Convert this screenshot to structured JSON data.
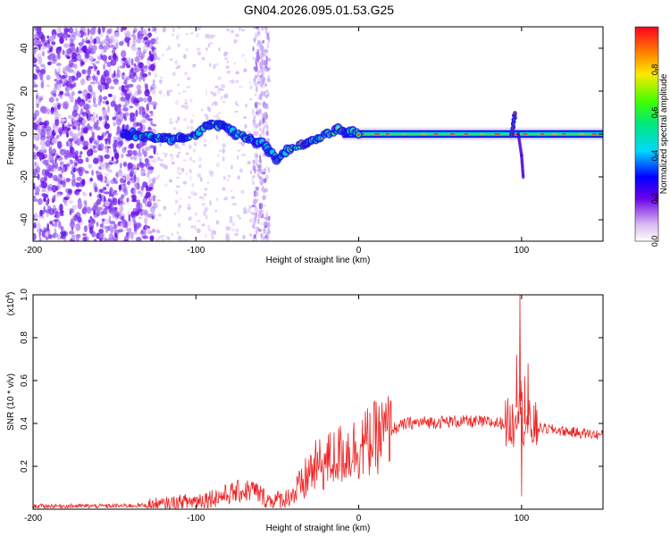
{
  "title": "GN04.2026.095.01.53.G25",
  "chart_data": [
    {
      "type": "heatmap",
      "xlabel": "Height of straight line (km)",
      "ylabel": "Frequency (Hz)",
      "xlim": [
        -200,
        150
      ],
      "ylim": [
        -50,
        50
      ],
      "xticks": [
        -200,
        -100,
        0,
        100
      ],
      "yticks": [
        -40,
        -20,
        0,
        20,
        40
      ],
      "colorbar": {
        "label": "Normalized spectral amplitude",
        "range": [
          0,
          1
        ],
        "ticks": [
          "0.0",
          "0.2",
          "0.4",
          "0.6",
          "0.8"
        ]
      },
      "ridge": {
        "description_points_km_hz": [
          [
            -140,
            0
          ],
          [
            -125,
            -2
          ],
          [
            -110,
            -2
          ],
          [
            -100,
            0
          ],
          [
            -95,
            4
          ],
          [
            -88,
            5
          ],
          [
            -80,
            2
          ],
          [
            -72,
            -1
          ],
          [
            -65,
            -3
          ],
          [
            -58,
            -5
          ],
          [
            -50,
            -12
          ],
          [
            -45,
            -8
          ],
          [
            -40,
            -6
          ],
          [
            -30,
            -4
          ],
          [
            -20,
            0
          ],
          [
            -12,
            2
          ],
          [
            -6,
            1
          ],
          [
            0,
            0
          ],
          [
            20,
            0
          ],
          [
            60,
            0
          ],
          [
            85,
            0
          ],
          [
            92,
            2
          ],
          [
            95,
            8
          ],
          [
            98,
            2
          ],
          [
            100,
            0
          ],
          [
            150,
            0
          ]
        ],
        "branch_km_hz": [
          [
            98,
            0
          ],
          [
            100,
            -10
          ],
          [
            101,
            -20
          ]
        ],
        "noise_region_km": [
          -200,
          -125
        ],
        "diffuse_band_km": [
          -65,
          -55
        ]
      }
    },
    {
      "type": "line",
      "xlabel": "Height of straight line (km)",
      "ylabel": "SNR (10 * v/v)",
      "y_scale_label": "(x10",
      "y_scale_exp": "4",
      "xlim": [
        -200,
        150
      ],
      "ylim": [
        0,
        1.0
      ],
      "xticks": [
        -200,
        -100,
        0,
        100
      ],
      "yticks": [
        "0.2",
        "0.4",
        "0.6",
        "0.8",
        "1.0"
      ],
      "series": [
        {
          "name": "SNR",
          "color": "#ee2222",
          "points_km_val": [
            [
              -200,
              0.015
            ],
            [
              -150,
              0.015
            ],
            [
              -120,
              0.02
            ],
            [
              -100,
              0.04
            ],
            [
              -85,
              0.06
            ],
            [
              -75,
              0.08
            ],
            [
              -65,
              0.09
            ],
            [
              -55,
              0.04
            ],
            [
              -45,
              0.05
            ],
            [
              -35,
              0.1
            ],
            [
              -30,
              0.18
            ],
            [
              -20,
              0.22
            ],
            [
              -10,
              0.26
            ],
            [
              0,
              0.29
            ],
            [
              10,
              0.33
            ],
            [
              20,
              0.37
            ],
            [
              30,
              0.4
            ],
            [
              40,
              0.405
            ],
            [
              60,
              0.41
            ],
            [
              80,
              0.405
            ],
            [
              90,
              0.4
            ],
            [
              95,
              0.4
            ],
            [
              99,
              0.55
            ],
            [
              101,
              0.4
            ],
            [
              110,
              0.38
            ],
            [
              130,
              0.36
            ],
            [
              150,
              0.345
            ]
          ],
          "spikes_km_val": [
            [
              97,
              0.72
            ],
            [
              99,
              1.0
            ],
            [
              100,
              0.06
            ],
            [
              102,
              0.62
            ],
            [
              104,
              0.68
            ]
          ]
        }
      ]
    }
  ]
}
